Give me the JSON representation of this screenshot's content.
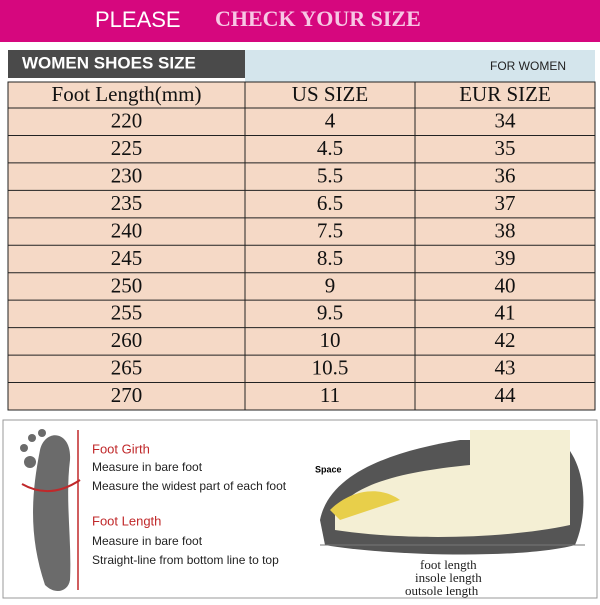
{
  "header": {
    "left": "PLEASE",
    "right": "CHECK YOUR SIZE"
  },
  "subheader": {
    "title": "WOMEN SHOES SIZE",
    "note": "FOR WOMEN"
  },
  "table": {
    "columns": [
      "Foot Length(mm)",
      "US  SIZE",
      "EUR  SIZE"
    ],
    "rows": [
      [
        "220",
        "4",
        "34"
      ],
      [
        "225",
        "4.5",
        "35"
      ],
      [
        "230",
        "5.5",
        "36"
      ],
      [
        "235",
        "6.5",
        "37"
      ],
      [
        "240",
        "7.5",
        "38"
      ],
      [
        "245",
        "8.5",
        "39"
      ],
      [
        "250",
        "9",
        "40"
      ],
      [
        "255",
        "9.5",
        "41"
      ],
      [
        "260",
        "10",
        "42"
      ],
      [
        "265",
        "10.5",
        "43"
      ],
      [
        "270",
        "11",
        "44"
      ]
    ]
  },
  "guide": {
    "girth_title": "Foot Girth",
    "girth_steps": [
      "Measure in bare foot",
      "Measure the widest part of each foot"
    ],
    "length_title": "Foot Length",
    "length_steps": [
      "Measure in bare foot",
      "Straight-line from bottom line to top"
    ],
    "space": "Space",
    "lengths": [
      "foot length",
      "insole length",
      "outsole length"
    ]
  }
}
